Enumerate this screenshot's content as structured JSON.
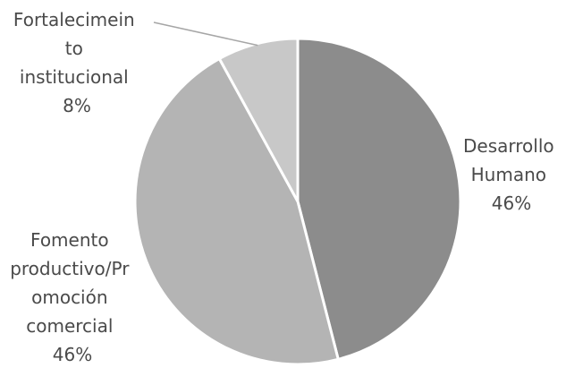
{
  "chart_data": {
    "type": "pie",
    "title": "",
    "slices": [
      {
        "name": "Desarrollo Humano",
        "value": 46,
        "label_lines": [
          "Desarrollo",
          "Humano",
          "46%"
        ],
        "color": "#8c8c8c"
      },
      {
        "name": "Fomento productivo/Promoción comercial",
        "value": 46,
        "label_lines": [
          "Fomento",
          "productivo/Pr",
          "omoción",
          "comercial",
          "46%"
        ],
        "color": "#b4b4b4"
      },
      {
        "name": "Fortalecimeinto institucional",
        "value": 8,
        "label_lines": [
          "Fortalecimein",
          "to",
          "institucional",
          "8%"
        ],
        "color": "#c8c8c8"
      }
    ],
    "legend": "none",
    "start_angle_deg": 0,
    "direction": "clockwise"
  }
}
